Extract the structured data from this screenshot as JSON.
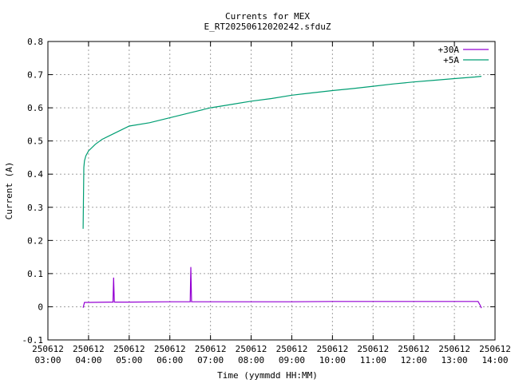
{
  "chart_data": {
    "type": "line",
    "title": "Currents for MEX",
    "subtitle": "E_RT20250612020242.sfduZ",
    "xlabel": "Time (yymmdd HH:MM)",
    "ylabel": "Current (A)",
    "xlim": [
      "250612 03:00",
      "250612 14:00"
    ],
    "ylim": [
      -0.1,
      0.8
    ],
    "grid": true,
    "legend_position": "top-right",
    "x_ticks": [
      {
        "date": "250612",
        "time": "03:00"
      },
      {
        "date": "250612",
        "time": "04:00"
      },
      {
        "date": "250612",
        "time": "05:00"
      },
      {
        "date": "250612",
        "time": "06:00"
      },
      {
        "date": "250612",
        "time": "07:00"
      },
      {
        "date": "250612",
        "time": "08:00"
      },
      {
        "date": "250612",
        "time": "09:00"
      },
      {
        "date": "250612",
        "time": "10:00"
      },
      {
        "date": "250612",
        "time": "11:00"
      },
      {
        "date": "250612",
        "time": "12:00"
      },
      {
        "date": "250612",
        "time": "13:00"
      },
      {
        "date": "250612",
        "time": "14:00"
      }
    ],
    "y_ticks": [
      "-0.1",
      "0",
      "0.1",
      "0.2",
      "0.3",
      "0.4",
      "0.5",
      "0.6",
      "0.7",
      "0.8"
    ],
    "series": [
      {
        "name": "+30A",
        "color": "#9400d3",
        "x": [
          "250612 03:52",
          "250612 03:54",
          "250612 04:00",
          "250612 04:30",
          "250612 04:36",
          "250612 04:37",
          "250612 04:38",
          "250612 05:00",
          "250612 06:00",
          "250612 06:30",
          "250612 06:31",
          "250612 06:32",
          "250612 07:00",
          "250612 08:00",
          "250612 09:00",
          "250612 10:00",
          "250612 11:00",
          "250612 12:00",
          "250612 13:00",
          "250612 13:35",
          "250612 13:38",
          "250612 13:40"
        ],
        "values": [
          -0.003,
          0.013,
          0.013,
          0.014,
          0.014,
          0.088,
          0.014,
          0.014,
          0.015,
          0.015,
          0.12,
          0.015,
          0.015,
          0.015,
          0.015,
          0.016,
          0.016,
          0.016,
          0.016,
          0.016,
          0.005,
          -0.004
        ]
      },
      {
        "name": "+5A",
        "color": "#009e73",
        "x": [
          "250612 03:52",
          "250612 03:53",
          "250612 03:54",
          "250612 03:56",
          "250612 04:00",
          "250612 04:10",
          "250612 04:20",
          "250612 04:30",
          "250612 04:45",
          "250612 05:00",
          "250612 05:30",
          "250612 06:00",
          "250612 06:30",
          "250612 07:00",
          "250612 07:30",
          "250612 08:00",
          "250612 08:30",
          "250612 09:00",
          "250612 09:30",
          "250612 10:00",
          "250612 10:30",
          "250612 11:00",
          "250612 11:30",
          "250612 12:00",
          "250612 12:30",
          "250612 13:00",
          "250612 13:30",
          "250612 13:40"
        ],
        "values": [
          0.235,
          0.42,
          0.44,
          0.455,
          0.47,
          0.49,
          0.505,
          0.515,
          0.53,
          0.545,
          0.555,
          0.57,
          0.585,
          0.6,
          0.61,
          0.62,
          0.628,
          0.638,
          0.645,
          0.652,
          0.658,
          0.665,
          0.672,
          0.678,
          0.683,
          0.688,
          0.693,
          0.695
        ]
      }
    ]
  }
}
